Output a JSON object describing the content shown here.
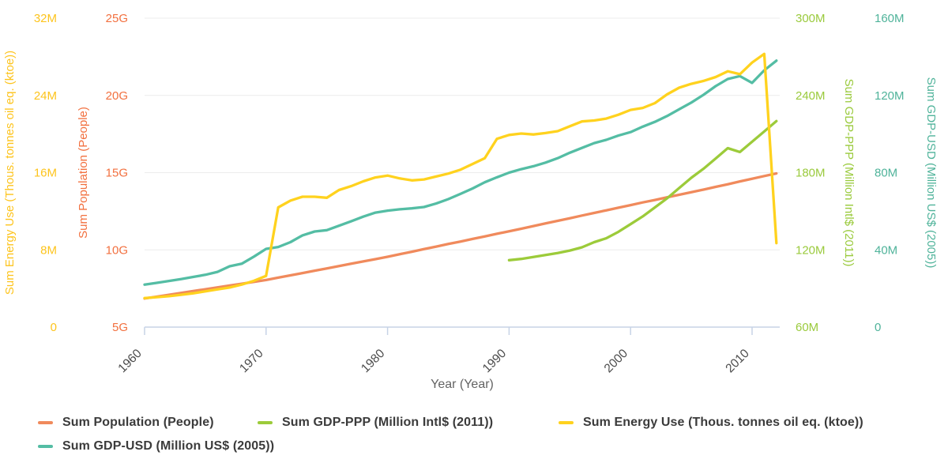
{
  "chart_data": {
    "type": "line",
    "title": "",
    "x_axis": {
      "label": "Year (Year)",
      "tick_labels": [
        "1960",
        "1970",
        "1980",
        "1990",
        "2000",
        "2010"
      ],
      "range": [
        1960,
        2012
      ],
      "grid": false
    },
    "y_axes": [
      {
        "id": "energy",
        "label": "Sum Energy Use (Thous. tonnes oil eq. (ktoe))",
        "side": "left",
        "tick_labels": [
          "0",
          "8M",
          "16M",
          "24M",
          "32M"
        ],
        "min": 0,
        "max": 32,
        "unit": "million ktoe",
        "text_color": "#fdc41d",
        "line_color": "#ffd21e"
      },
      {
        "id": "population",
        "label": "Sum Population (People)",
        "side": "left",
        "tick_labels": [
          "5G",
          "10G",
          "15G",
          "20G",
          "25G"
        ],
        "min": 5,
        "max": 25,
        "unit": "billion people",
        "text_color": "#f2703f",
        "line_color": "#f08a5c"
      },
      {
        "id": "gdp_ppp",
        "label": "Sum GDP-PPP (Million Intl$ (2011))",
        "side": "right",
        "tick_labels": [
          "60M",
          "120M",
          "180M",
          "240M",
          "300M"
        ],
        "min": 60,
        "max": 300,
        "unit": "million Intl$",
        "text_color": "#9aca3c",
        "line_color": "#9ccb3a"
      },
      {
        "id": "gdp_usd",
        "label": "Sum GDP-USD (Million US$ (2005))",
        "side": "right",
        "tick_labels": [
          "0",
          "40M",
          "80M",
          "120M",
          "160M"
        ],
        "min": 0,
        "max": 160,
        "unit": "million US$",
        "text_color": "#4fb39a",
        "line_color": "#54bda4"
      }
    ],
    "series": [
      {
        "id": "population",
        "name": "Sum Population (People)",
        "axis": "population",
        "color": "#f08a5c",
        "start_year": 1960,
        "values_unit": "billion people (G)",
        "values": [
          6.85,
          6.97,
          7.09,
          7.21,
          7.33,
          7.45,
          7.57,
          7.69,
          7.81,
          7.93,
          8.05,
          8.2,
          8.35,
          8.5,
          8.65,
          8.8,
          8.95,
          9.1,
          9.25,
          9.4,
          9.55,
          9.72,
          9.88,
          10.05,
          10.21,
          10.38,
          10.54,
          10.71,
          10.87,
          11.04,
          11.2,
          11.37,
          11.54,
          11.71,
          11.88,
          12.05,
          12.22,
          12.39,
          12.56,
          12.73,
          12.9,
          13.07,
          13.23,
          13.4,
          13.57,
          13.73,
          13.9,
          14.08,
          14.25,
          14.43,
          14.6,
          14.78,
          14.95
        ]
      },
      {
        "id": "gdp_ppp",
        "name": "Sum GDP-PPP (Million Intl$ (2011))",
        "axis": "gdp_ppp",
        "color": "#9ccb3a",
        "start_year": 1990,
        "values_unit": "million Intl$ (M)",
        "values": [
          112,
          113,
          114.5,
          116,
          117.5,
          119.5,
          122,
          126,
          129,
          134,
          140,
          146,
          153,
          160,
          168,
          176,
          183,
          191,
          199,
          196,
          204,
          212,
          220
        ]
      },
      {
        "id": "energy",
        "name": "Sum Energy Use (Thous. tonnes oil eq. (ktoe))",
        "axis": "energy",
        "color": "#ffd21e",
        "start_year": 1960,
        "values_unit": "million ktoe (M)",
        "values": [
          3.0,
          3.1,
          3.2,
          3.35,
          3.5,
          3.7,
          3.9,
          4.1,
          4.4,
          4.8,
          5.3,
          12.4,
          13.1,
          13.5,
          13.5,
          13.4,
          14.2,
          14.6,
          15.1,
          15.5,
          15.7,
          15.4,
          15.2,
          15.3,
          15.6,
          15.9,
          16.3,
          16.9,
          17.5,
          19.5,
          19.9,
          20.05,
          19.95,
          20.1,
          20.3,
          20.8,
          21.3,
          21.4,
          21.6,
          22.0,
          22.5,
          22.7,
          23.2,
          24.1,
          24.8,
          25.2,
          25.5,
          25.9,
          26.5,
          26.2,
          27.4,
          28.3,
          8.7
        ]
      },
      {
        "id": "gdp_usd",
        "name": "Sum GDP-USD (Million US$ (2005))",
        "axis": "gdp_usd",
        "color": "#54bda4",
        "start_year": 1960,
        "values_unit": "million US$ (M)",
        "values": [
          22.0,
          22.9,
          23.9,
          24.9,
          26.0,
          27.1,
          28.6,
          31.5,
          32.8,
          36.5,
          40.5,
          41.5,
          44.0,
          47.5,
          49.5,
          50.2,
          52.5,
          54.8,
          57.2,
          59.3,
          60.3,
          61.0,
          61.5,
          62.2,
          64.0,
          66.3,
          69.0,
          71.8,
          75.0,
          77.6,
          80.0,
          81.8,
          83.3,
          85.2,
          87.5,
          90.3,
          92.8,
          95.3,
          97.0,
          99.2,
          101.0,
          103.8,
          106.3,
          109.3,
          112.8,
          116.3,
          120.3,
          124.8,
          128.5,
          130.0,
          126.5,
          133.0,
          138.0
        ]
      }
    ],
    "layout_hints": {
      "grid_color": "#ececec",
      "axis_line_color": "#c7d3e6",
      "x_tick_text_color": "#4a4a4a",
      "x_axis_label_color": "#636363",
      "legend_position": "bottom",
      "legend_rows": [
        [
          "population",
          "gdp_ppp",
          "energy"
        ],
        [
          "gdp_usd"
        ]
      ]
    }
  },
  "legend": {
    "items": [
      {
        "series": "population",
        "label": "Sum Population (People)",
        "color": "#f08a5c"
      },
      {
        "series": "gdp_ppp",
        "label": "Sum GDP-PPP (Million Intl$ (2011))",
        "color": "#9ccb3a"
      },
      {
        "series": "energy",
        "label": "Sum Energy Use (Thous. tonnes oil eq. (ktoe))",
        "color": "#ffd21e"
      },
      {
        "series": "gdp_usd",
        "label": "Sum GDP-USD (Million US$ (2005))",
        "color": "#54bda4"
      }
    ]
  }
}
